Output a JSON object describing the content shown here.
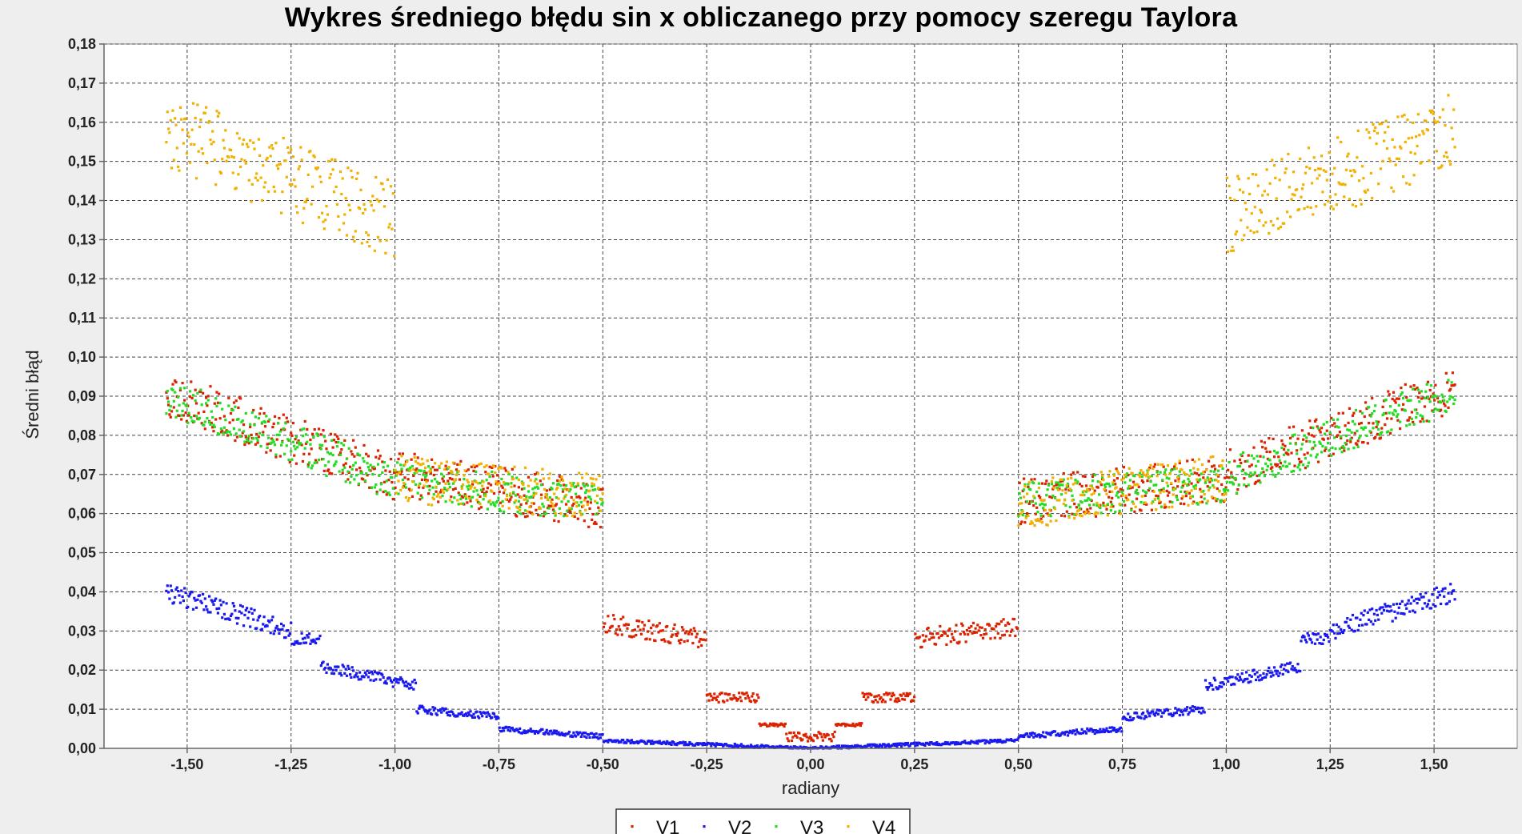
{
  "chart_data": {
    "type": "scatter",
    "title": "Wykres średniego błędu sin x obliczanego przy pomocy szeregu Taylora",
    "xlabel": "radiany",
    "ylabel": "Średni błąd",
    "xlim": [
      -1.7,
      1.7
    ],
    "ylim": [
      0.0,
      0.18
    ],
    "x_ticks": [
      -1.5,
      -1.25,
      -1.0,
      -0.75,
      -0.5,
      -0.25,
      0.0,
      0.25,
      0.5,
      0.75,
      1.0,
      1.25,
      1.5
    ],
    "x_tick_labels": [
      "-1,50",
      "-1,25",
      "-1,00",
      "-0,75",
      "-0,50",
      "-0,25",
      "0,00",
      "0,25",
      "0,50",
      "0,75",
      "1,00",
      "1,25",
      "1,50"
    ],
    "y_ticks": [
      0.0,
      0.01,
      0.02,
      0.03,
      0.04,
      0.05,
      0.06,
      0.07,
      0.08,
      0.09,
      0.1,
      0.11,
      0.12,
      0.13,
      0.14,
      0.15,
      0.16,
      0.17,
      0.18
    ],
    "y_tick_labels": [
      "0,00",
      "0,01",
      "0,02",
      "0,03",
      "0,04",
      "0,05",
      "0,06",
      "0,07",
      "0,08",
      "0,09",
      "0,10",
      "0,11",
      "0,12",
      "0,13",
      "0,14",
      "0,15",
      "0,16",
      "0,17",
      "0,18"
    ],
    "grid": true,
    "legend_position": "bottom",
    "x_range": [
      -1.55,
      1.55
    ],
    "series": [
      {
        "name": "V1",
        "color": "#dd2200",
        "segments": [
          {
            "x_from": -1.55,
            "x_to": -1.0,
            "y_from": 0.091,
            "y_to": 0.069,
            "noise": 0.006
          },
          {
            "x_from": -1.0,
            "x_to": -0.5,
            "y_from": 0.07,
            "y_to": 0.062,
            "noise": 0.006
          },
          {
            "x_from": -0.5,
            "x_to": -0.25,
            "y_from": 0.032,
            "y_to": 0.028,
            "noise": 0.0025
          },
          {
            "x_from": -0.25,
            "x_to": -0.125,
            "y_from": 0.013,
            "y_to": 0.013,
            "noise": 0.0012
          },
          {
            "x_from": -0.125,
            "x_to": -0.06,
            "y_from": 0.006,
            "y_to": 0.006,
            "noise": 0.0004
          },
          {
            "x_from": -0.06,
            "x_to": 0.06,
            "y_from": 0.003,
            "y_to": 0.003,
            "noise": 0.0012
          },
          {
            "x_from": 0.06,
            "x_to": 0.125,
            "y_from": 0.006,
            "y_to": 0.006,
            "noise": 0.0004
          },
          {
            "x_from": 0.125,
            "x_to": 0.25,
            "y_from": 0.013,
            "y_to": 0.013,
            "noise": 0.0012
          },
          {
            "x_from": 0.25,
            "x_to": 0.5,
            "y_from": 0.028,
            "y_to": 0.031,
            "noise": 0.0025
          },
          {
            "x_from": 0.5,
            "x_to": 1.0,
            "y_from": 0.063,
            "y_to": 0.069,
            "noise": 0.006
          },
          {
            "x_from": 1.0,
            "x_to": 1.55,
            "y_from": 0.07,
            "y_to": 0.092,
            "noise": 0.006
          }
        ]
      },
      {
        "name": "V2",
        "color": "#1a1aee",
        "segments": [
          {
            "x_from": -1.55,
            "x_to": -1.25,
            "y_from": 0.04,
            "y_to": 0.03,
            "noise": 0.0025
          },
          {
            "x_from": -1.25,
            "x_to": -1.18,
            "y_from": 0.028,
            "y_to": 0.028,
            "noise": 0.0015
          },
          {
            "x_from": -1.18,
            "x_to": -0.95,
            "y_from": 0.021,
            "y_to": 0.016,
            "noise": 0.0015
          },
          {
            "x_from": -0.95,
            "x_to": -0.75,
            "y_from": 0.01,
            "y_to": 0.008,
            "noise": 0.001
          },
          {
            "x_from": -0.75,
            "x_to": -0.5,
            "y_from": 0.005,
            "y_to": 0.003,
            "noise": 0.0007
          },
          {
            "x_from": -0.5,
            "x_to": 0.0,
            "y_from": 0.002,
            "y_to": 0.0,
            "noise": 0.0004
          },
          {
            "x_from": 0.0,
            "x_to": 0.5,
            "y_from": 0.0,
            "y_to": 0.002,
            "noise": 0.0004
          },
          {
            "x_from": 0.5,
            "x_to": 0.75,
            "y_from": 0.003,
            "y_to": 0.005,
            "noise": 0.0007
          },
          {
            "x_from": 0.75,
            "x_to": 0.95,
            "y_from": 0.008,
            "y_to": 0.01,
            "noise": 0.001
          },
          {
            "x_from": 0.95,
            "x_to": 1.18,
            "y_from": 0.016,
            "y_to": 0.021,
            "noise": 0.0015
          },
          {
            "x_from": 1.18,
            "x_to": 1.25,
            "y_from": 0.028,
            "y_to": 0.028,
            "noise": 0.0015
          },
          {
            "x_from": 1.25,
            "x_to": 1.55,
            "y_from": 0.03,
            "y_to": 0.04,
            "noise": 0.0025
          }
        ]
      },
      {
        "name": "V3",
        "color": "#22dd22",
        "segments": [
          {
            "x_from": -1.55,
            "x_to": -1.0,
            "y_from": 0.09,
            "y_to": 0.068,
            "noise": 0.005
          },
          {
            "x_from": -1.0,
            "x_to": -0.5,
            "y_from": 0.069,
            "y_to": 0.062,
            "noise": 0.005
          },
          {
            "x_from": 0.5,
            "x_to": 1.0,
            "y_from": 0.063,
            "y_to": 0.068,
            "noise": 0.005
          },
          {
            "x_from": 1.0,
            "x_to": 1.55,
            "y_from": 0.069,
            "y_to": 0.091,
            "noise": 0.005
          }
        ]
      },
      {
        "name": "V4",
        "color": "#f2b000",
        "segments": [
          {
            "x_from": -1.55,
            "x_to": -1.0,
            "y_from": 0.158,
            "y_to": 0.135,
            "noise": 0.01
          },
          {
            "x_from": -1.0,
            "x_to": -0.5,
            "y_from": 0.069,
            "y_to": 0.064,
            "noise": 0.006
          },
          {
            "x_from": 0.5,
            "x_to": 1.0,
            "y_from": 0.062,
            "y_to": 0.069,
            "noise": 0.006
          },
          {
            "x_from": 1.0,
            "x_to": 1.55,
            "y_from": 0.136,
            "y_to": 0.158,
            "noise": 0.01
          }
        ]
      }
    ]
  }
}
